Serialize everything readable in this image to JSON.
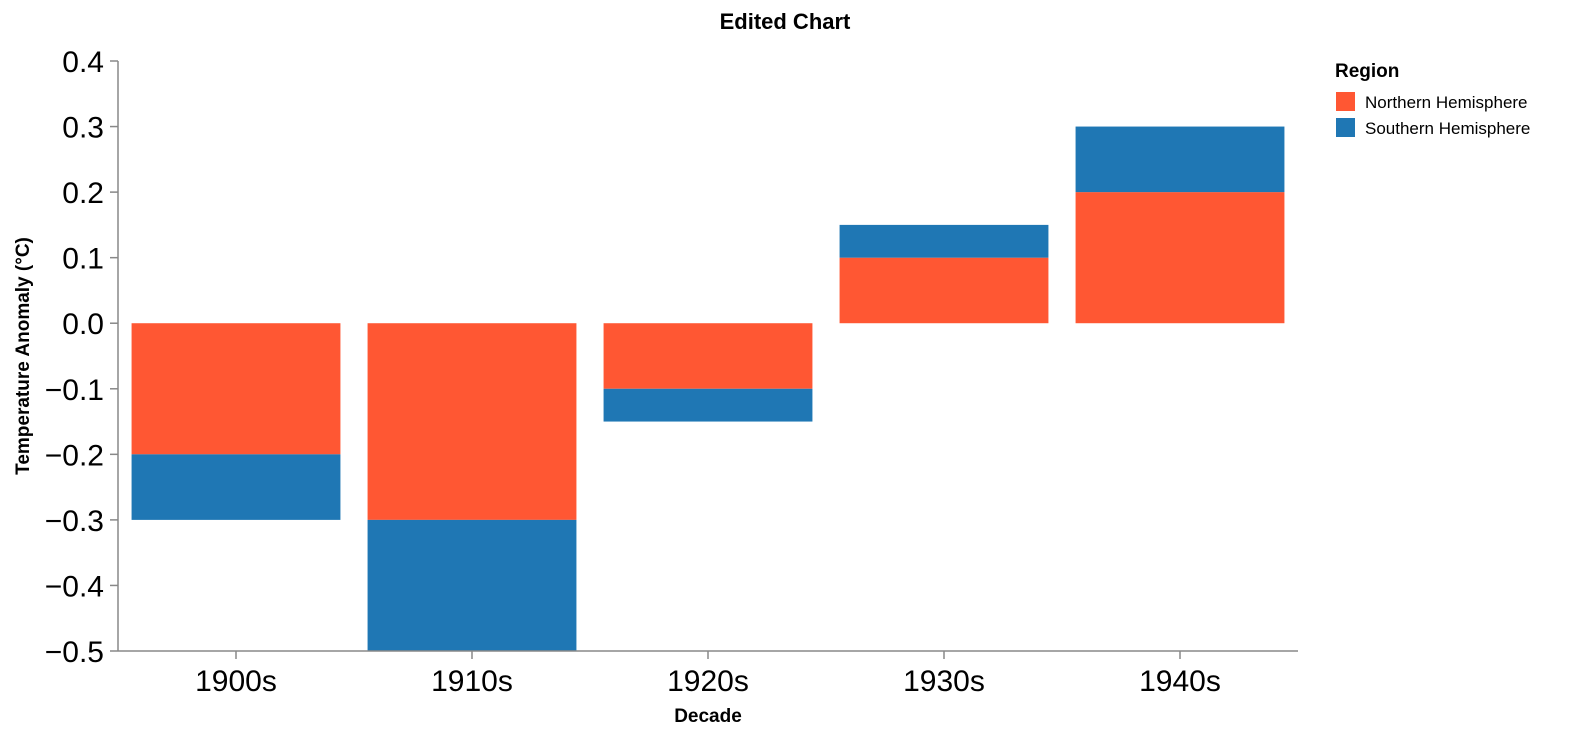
{
  "chart_data": {
    "type": "bar",
    "stacked": true,
    "title": "Edited Chart",
    "xlabel": "Decade",
    "ylabel": "Temperature Anomaly (°C)",
    "categories": [
      "1900s",
      "1910s",
      "1920s",
      "1930s",
      "1940s"
    ],
    "series": [
      {
        "name": "Northern Hemisphere",
        "color": "#ff5733",
        "values": [
          -0.2,
          -0.3,
          -0.1,
          0.1,
          0.2
        ]
      },
      {
        "name": "Southern Hemisphere",
        "color": "#1f77b4",
        "values": [
          -0.1,
          -0.2,
          -0.05,
          0.05,
          0.1
        ]
      }
    ],
    "ylim": [
      -0.5,
      0.4
    ],
    "yticks": [
      0.4,
      0.3,
      0.2,
      0.1,
      0.0,
      -0.1,
      -0.2,
      -0.3,
      -0.4,
      -0.5
    ],
    "ytick_labels": [
      "0.4",
      "0.3",
      "0.2",
      "0.1",
      "0.0",
      "−0.1",
      "−0.2",
      "−0.3",
      "−0.4",
      "−0.5"
    ],
    "grid": false,
    "legend": {
      "title": "Region",
      "position": "top-right"
    }
  }
}
